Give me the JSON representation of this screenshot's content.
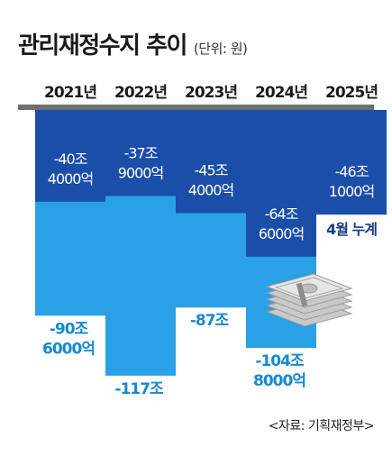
{
  "header": {
    "title": "관리재정수지 추이",
    "unit": "(단위: 원)"
  },
  "source": "<자료: 기획재정부>",
  "colors": {
    "axis_band": "#707070",
    "annual_bar": "#2aa0e6",
    "cumulative_bar": "#1a4ea8",
    "annual_label": "#1689d0",
    "cumulative_label": "#ffffff",
    "note_label": "#1a3c86",
    "year_label": "#1a1a1a",
    "bill_icon": "#cfcfcf"
  },
  "chart_data": {
    "type": "bar",
    "title": "관리재정수지 추이",
    "unit": "원",
    "categories": [
      "2021년",
      "2022년",
      "2023년",
      "2024년",
      "2025년"
    ],
    "series": [
      {
        "values_trillion": [
          -90.6,
          -117.0,
          -87.0,
          -104.8,
          null
        ],
        "labels": [
          [
            "-90조",
            "6000억"
          ],
          [
            "-117조"
          ],
          [
            "-87조"
          ],
          [
            "-104조",
            "8000억"
          ],
          []
        ]
      },
      {
        "values_trillion": [
          -40.4,
          -37.9,
          -45.4,
          -64.6,
          -46.1
        ],
        "labels": [
          [
            "-40조",
            "4000억"
          ],
          [
            "-37조",
            "9000억"
          ],
          [
            "-45조",
            "4000억"
          ],
          [
            "-64조",
            "6000억"
          ],
          [
            "-46조",
            "1000억"
          ]
        ],
        "notes": [
          "",
          "",
          "",
          "",
          "4월 누계"
        ]
      }
    ],
    "ylim": [
      -120,
      0
    ],
    "grid": false,
    "legend": "none",
    "decoration": "money-stack-icon"
  }
}
